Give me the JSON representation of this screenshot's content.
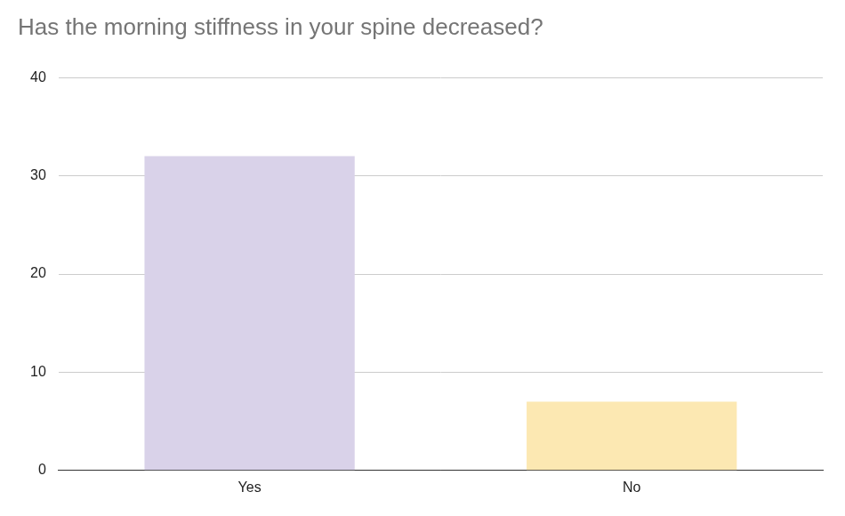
{
  "chart_data": {
    "type": "bar",
    "title": "Has the morning stiffness in your spine decreased?",
    "categories": [
      "Yes",
      "No"
    ],
    "values": [
      32,
      7
    ],
    "colors": [
      "#d9d2e9",
      "#fce8b2"
    ],
    "ylim": [
      0,
      40
    ],
    "yticks": [
      0,
      10,
      20,
      30,
      40
    ],
    "grid": true
  }
}
